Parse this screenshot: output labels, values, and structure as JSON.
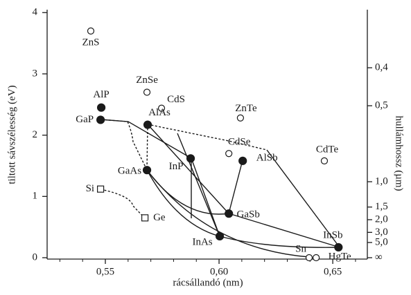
{
  "chart_data": {
    "type": "scatter",
    "xlabel": "rácsállandó (nm)",
    "ylabel": "tiltott sávszélesség (eV)",
    "y2label": "hullámhossz (µm)",
    "xlim": [
      0.5244,
      0.6652
    ],
    "ylim": [
      0,
      4.05
    ],
    "xticks": [
      {
        "value": 0.55,
        "label": "0,55"
      },
      {
        "value": 0.6,
        "label": "0,60"
      },
      {
        "value": 0.65,
        "label": "0,65"
      }
    ],
    "xminorticks": [
      0.53,
      0.54,
      0.56,
      0.57,
      0.58,
      0.59,
      0.61,
      0.62,
      0.63,
      0.64,
      0.66
    ],
    "yticks": [
      0,
      1,
      2,
      3,
      4
    ],
    "y2_scale": "reciprocal",
    "y2_constant": 1.24,
    "y2ticks": [
      {
        "value": 0.4,
        "label": "0,4"
      },
      {
        "value": 0.5,
        "label": "0,5"
      },
      {
        "value": 1.0,
        "label": "1,0"
      },
      {
        "value": 1.5,
        "label": "1,5"
      },
      {
        "value": 2.0,
        "label": "2,0"
      },
      {
        "value": 3.0,
        "label": "3,0"
      },
      {
        "value": 5.0,
        "label": "5,0"
      },
      {
        "value": null,
        "label": "∞"
      }
    ],
    "points": {
      "labels": [
        "ZnS",
        "AlP",
        "GaP",
        "ZnSe",
        "CdS",
        "AlAs",
        "ZnTe",
        "CdSe",
        "AlSb",
        "CdTe",
        "GaAs",
        "InP",
        "GaSb",
        "InAs",
        "InSb",
        "Sn",
        "HgTe",
        "Si",
        "Ge"
      ],
      "x": [
        0.5436,
        0.5482,
        0.5479,
        0.5683,
        0.5747,
        0.5686,
        0.6094,
        0.6043,
        0.6104,
        0.6463,
        0.5683,
        0.5875,
        0.6043,
        0.6003,
        0.6525,
        0.6396,
        0.6427,
        0.5479,
        0.5674
      ],
      "y": [
        3.7,
        2.45,
        2.25,
        2.7,
        2.44,
        2.17,
        2.28,
        1.7,
        1.58,
        1.58,
        1.43,
        1.62,
        0.72,
        0.35,
        0.17,
        0,
        0,
        1.12,
        0.65
      ],
      "markers": [
        "open-circle",
        "filled-circle",
        "filled-circle",
        "open-circle",
        "open-circle",
        "filled-circle",
        "open-circle",
        "open-circle",
        "filled-circle",
        "open-circle",
        "filled-circle",
        "filled-circle",
        "filled-circle",
        "filled-circle",
        "filled-circle",
        "open-circle",
        "open-circle",
        "open-square",
        "open-square"
      ]
    },
    "color": "#1a1a1a"
  }
}
